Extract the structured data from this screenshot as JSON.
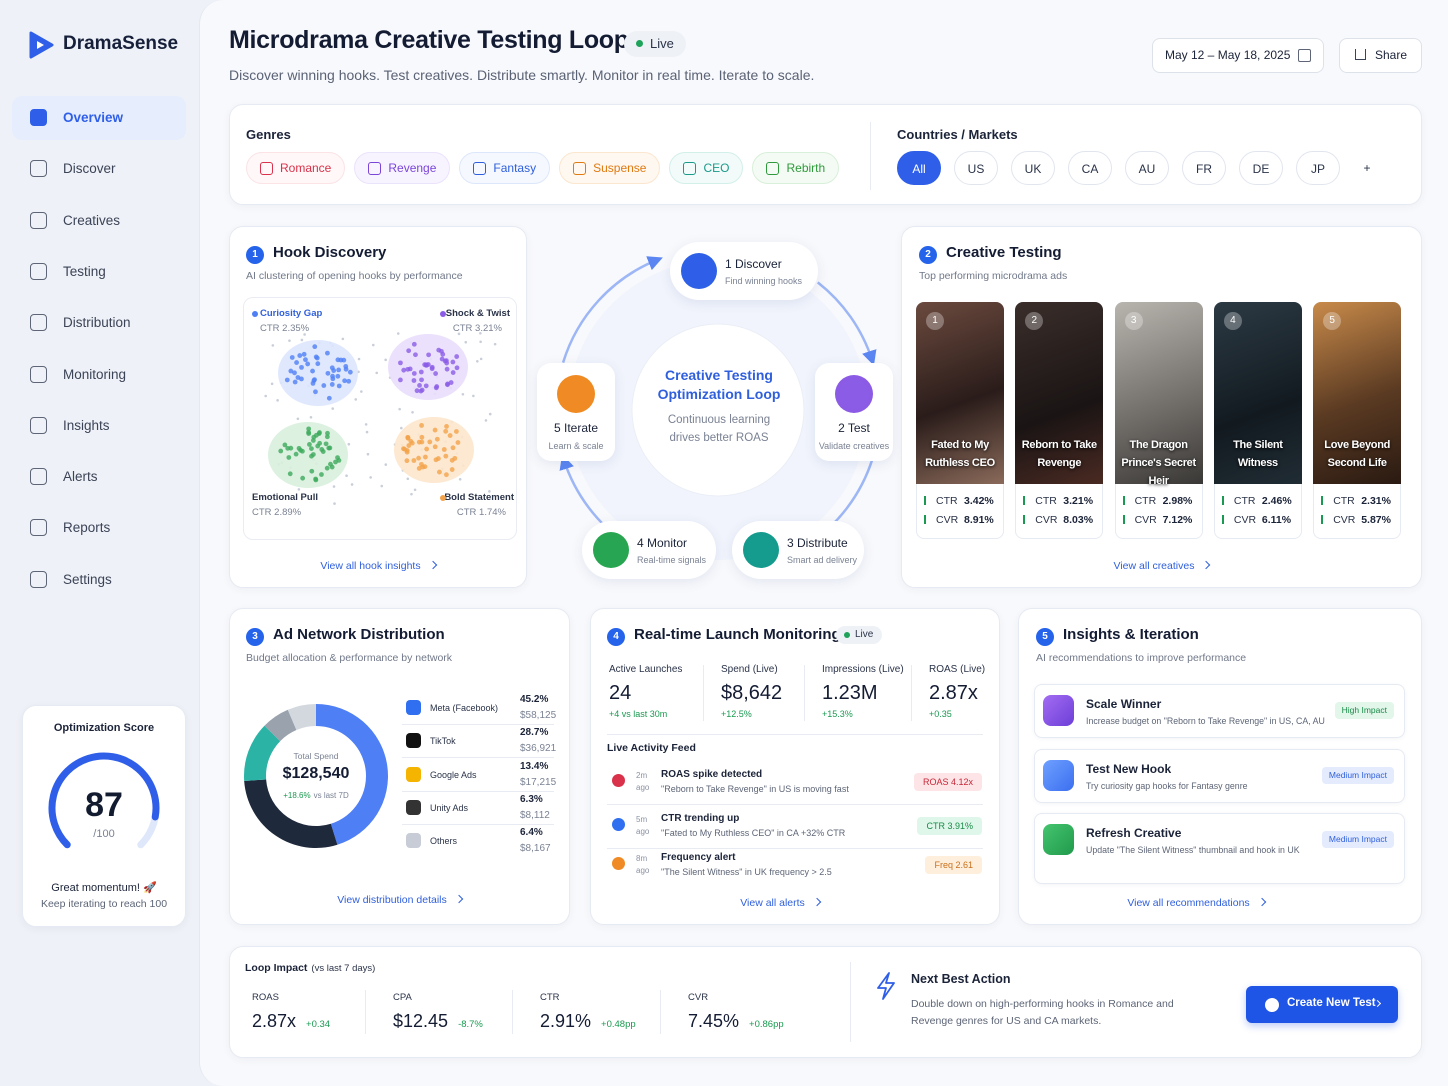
{
  "sidebar": {
    "brand": "DramaSense",
    "nav": [
      "Overview",
      "Discover",
      "Creatives",
      "Testing",
      "Distribution",
      "Monitoring",
      "Insights",
      "Alerts",
      "Reports",
      "Settings"
    ],
    "score": {
      "title": "Optimization Score",
      "value": 87,
      "max": {
        "value": 100,
        "label": "/100"
      },
      "message": "Great momentum! 🚀",
      "note": "Keep iterating to reach 100"
    }
  },
  "header": {
    "title": "Microdrama Creative Testing Loop",
    "status": "Live",
    "subtitle": "Discover winning hooks. Test creatives. Distribute smartly. Monitor in real time. Iterate to scale.",
    "date_range": "May 12 – May 18, 2025",
    "share": "Share"
  },
  "filters": {
    "genres_label": "Genres",
    "genres": [
      "Romance",
      "Revenge",
      "Fantasy",
      "Suspense",
      "CEO",
      "Rebirth"
    ],
    "markets_label": "Countries / Markets",
    "markets": [
      "All",
      "US",
      "UK",
      "CA",
      "AU",
      "FR",
      "DE",
      "JP",
      "+"
    ]
  },
  "hook_discovery": {
    "step": "1",
    "title": "Hook Discovery",
    "subtitle": "AI clustering of opening hooks by performance",
    "clusters": [
      {
        "name": "Curiosity Gap",
        "ctr": "CTR 2.35%"
      },
      {
        "name": "Shock & Twist",
        "ctr": "CTR 3.21%"
      },
      {
        "name": "Emotional Pull",
        "ctr": "CTR 2.89%"
      },
      {
        "name": "Bold Statement",
        "ctr": "CTR 1.74%"
      }
    ],
    "link": "View all hook insights"
  },
  "loop": {
    "title": "Creative Testing Optimization Loop",
    "description": "Continuous learning drives better ROAS",
    "steps": [
      {
        "label": "1 Discover",
        "note": "Find winning hooks"
      },
      {
        "label": "2 Test",
        "note": "Validate creatives"
      },
      {
        "label": "3 Distribute",
        "note": "Smart ad delivery"
      },
      {
        "label": "4 Monitor",
        "note": "Real-time signals"
      },
      {
        "label": "5 Iterate",
        "note": "Learn & scale"
      }
    ]
  },
  "creative_testing": {
    "step": "2",
    "title": "Creative Testing",
    "subtitle": "Top performing microdrama ads",
    "metric_labels": [
      "CTR",
      "CVR"
    ],
    "creatives": [
      {
        "rank": "1",
        "title": "Fated to My Ruthless CEO",
        "ctr": "3.42%",
        "cvr": "8.91%"
      },
      {
        "rank": "2",
        "title": "Reborn to Take Revenge",
        "ctr": "3.21%",
        "cvr": "8.03%"
      },
      {
        "rank": "3",
        "title": "The Dragon Prince's Secret Heir",
        "ctr": "2.98%",
        "cvr": "7.12%"
      },
      {
        "rank": "4",
        "title": "The Silent Witness",
        "ctr": "2.46%",
        "cvr": "6.11%"
      },
      {
        "rank": "5",
        "title": "Love Beyond Second Life",
        "ctr": "2.31%",
        "cvr": "5.87%"
      }
    ],
    "link": "View all creatives"
  },
  "distribution": {
    "step": "3",
    "title": "Ad Network Distribution",
    "subtitle": "Budget allocation & performance by network",
    "total_label": "Total Spend",
    "total": "$128,540",
    "change": "+18.6%",
    "change_note": "vs last 7D",
    "networks": [
      {
        "name": "Meta (Facebook)",
        "share": 45.2,
        "share_label": "45.2%",
        "spend": "$58,125",
        "color": "#4f7ff5"
      },
      {
        "name": "TikTok",
        "share": 28.7,
        "share_label": "28.7%",
        "spend": "$36,921",
        "color": "#1e293b"
      },
      {
        "name": "Google Ads",
        "share": 13.4,
        "share_label": "13.4%",
        "spend": "$17,215",
        "color": "#2bb3a6"
      },
      {
        "name": "Unity Ads",
        "share": 6.3,
        "share_label": "6.3%",
        "spend": "$8,112",
        "color": "#9aa2ad"
      },
      {
        "name": "Others",
        "share": 6.4,
        "share_label": "6.4%",
        "spend": "$8,167",
        "color": "#d3d8df"
      }
    ],
    "link": "View distribution details"
  },
  "monitoring": {
    "step": "4",
    "title": "Real-time Launch Monitoring",
    "status": "Live",
    "kpis": [
      {
        "label": "Active Launches",
        "value": "24",
        "change": "+4 vs last 30m"
      },
      {
        "label": "Spend (Live)",
        "value": "$8,642",
        "change": "+12.5%"
      },
      {
        "label": "Impressions (Live)",
        "value": "1.23M",
        "change": "+15.3%"
      },
      {
        "label": "ROAS (Live)",
        "value": "2.87x",
        "change": "+0.35"
      }
    ],
    "feed_title": "Live Activity Feed",
    "feed": [
      {
        "time": "2m ago",
        "title": "ROAS spike detected",
        "detail": "\"Reborn to Take Revenge\" in US is moving fast",
        "badge": "ROAS 4.12x"
      },
      {
        "time": "5m ago",
        "title": "CTR trending up",
        "detail": "\"Fated to My Ruthless CEO\" in CA +32% CTR",
        "badge": "CTR 3.91%"
      },
      {
        "time": "8m ago",
        "title": "Frequency alert",
        "detail": "\"The Silent Witness\" in UK frequency > 2.5",
        "badge": "Freq 2.61"
      }
    ],
    "link": "View all alerts"
  },
  "insights": {
    "step": "5",
    "title": "Insights & Iteration",
    "subtitle": "AI recommendations to improve performance",
    "items": [
      {
        "title": "Scale Winner",
        "detail": "Increase budget on \"Reborn to Take Revenge\" in US, CA, AU",
        "impact": "High Impact"
      },
      {
        "title": "Test New Hook",
        "detail": "Try curiosity gap hooks for Fantasy genre",
        "impact": "Medium Impact"
      },
      {
        "title": "Refresh Creative",
        "detail": "Update \"The Silent Witness\" thumbnail and hook in UK",
        "impact": "Medium Impact"
      }
    ],
    "link": "View all recommendations"
  },
  "loop_impact": {
    "title": "Loop Impact",
    "period": "(vs last 7 days)",
    "metrics": [
      {
        "label": "ROAS",
        "value": "2.87x",
        "change": "+0.34"
      },
      {
        "label": "CPA",
        "value": "$12.45",
        "change": "-8.7%"
      },
      {
        "label": "CTR",
        "value": "2.91%",
        "change": "+0.48pp"
      },
      {
        "label": "CVR",
        "value": "7.45%",
        "change": "+0.86pp"
      }
    ]
  },
  "next_action": {
    "title": "Next Best Action",
    "text": "Double down on high-performing hooks in Romance and Revenge genres for US and CA markets.",
    "button": "Create New Test"
  }
}
